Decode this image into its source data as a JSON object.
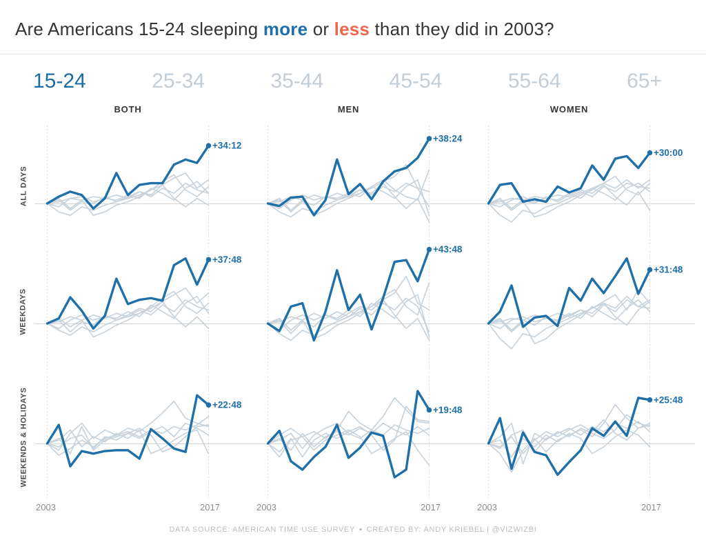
{
  "title": {
    "part1": "Are Americans 15-24 sleeping ",
    "more": "more",
    "part2": " or ",
    "less": "less",
    "part3": " than they did in 2003?"
  },
  "tabs": [
    {
      "label": "15-24",
      "selected": true
    },
    {
      "label": "25-34",
      "selected": false
    },
    {
      "label": "35-44",
      "selected": false
    },
    {
      "label": "45-54",
      "selected": false
    },
    {
      "label": "55-64",
      "selected": false
    },
    {
      "label": "65+",
      "selected": false
    }
  ],
  "columns": [
    "BOTH",
    "MEN",
    "WOMEN"
  ],
  "rows": [
    "ALL DAYS",
    "WEEKDAYS",
    "WEEKENDS & HOLIDAYS"
  ],
  "x_axis": {
    "start": "2003",
    "end": "2017"
  },
  "footer": {
    "source": "DATA SOURCE: AMERICAN TIME USE SURVEY",
    "sep": "•",
    "credit": "CREATED BY: ANDY KRIEBEL | @VIZWIZBI"
  },
  "colors": {
    "accent_blue": "#1f6fa8",
    "accent_orange": "#ee674c",
    "highlight_line": "#1f6fa8",
    "gray_line": "#c9d3db",
    "tab_active": "#1b6ba5",
    "tab_inactive": "#c3cdd5",
    "baseline": "#d4d4d4",
    "grid_dash": "#dcdcdc",
    "axis_text": "#8c8c8c",
    "footer_text": "#bdbdbd"
  },
  "chart_data": {
    "type": "line",
    "title": "Are Americans 15-24 sleeping more or less than they did in 2003?",
    "highlight_group": "15-24",
    "unit": "change in daily sleep vs 2003, minutes (labels shown as +mm:ss)",
    "x": [
      2003,
      2004,
      2005,
      2006,
      2007,
      2008,
      2009,
      2010,
      2011,
      2012,
      2013,
      2014,
      2015,
      2016,
      2017
    ],
    "xlim": [
      2003,
      2017
    ],
    "grid": "dashed verticals at 2003 and 2017, solid zero baseline",
    "legend": "none (end-of-line labels)",
    "panels": [
      {
        "row": "ALL DAYS",
        "col": "BOTH",
        "end_label": "+34:12",
        "highlight": [
          0,
          4,
          7,
          5,
          -3,
          3,
          18,
          5,
          11,
          12,
          12,
          23,
          26,
          24,
          34.2
        ],
        "background": [
          [
            0,
            -5,
            -7,
            -2,
            -4,
            -1,
            1,
            3,
            5,
            8,
            11,
            15,
            18,
            9,
            14
          ],
          [
            0,
            3,
            -3,
            2,
            -7,
            -5,
            -1,
            1,
            4,
            8,
            13,
            17,
            8,
            4,
            10
          ],
          [
            0,
            1,
            3,
            2,
            4,
            3,
            5,
            3,
            7,
            4,
            9,
            6,
            12,
            8,
            6
          ],
          [
            0,
            -2,
            3,
            4,
            1,
            3,
            2,
            5,
            3,
            9,
            6,
            2,
            9,
            13,
            6
          ],
          [
            0,
            2,
            -4,
            1,
            0,
            4,
            1,
            4,
            7,
            5,
            11,
            3,
            -2,
            3,
            -1
          ]
        ]
      },
      {
        "row": "ALL DAYS",
        "col": "MEN",
        "end_label": "+38:24",
        "highlight": [
          0,
          -1.5,
          3.5,
          4,
          -7,
          2,
          26,
          5.5,
          11.5,
          2.5,
          13,
          19,
          21,
          27,
          38.4
        ],
        "background": [
          [
            0,
            -5,
            -8,
            -3,
            -5,
            -1,
            2,
            4,
            6,
            9,
            13,
            16,
            23,
            9,
            7
          ],
          [
            0,
            3,
            -4,
            2,
            -7,
            -4,
            0,
            3,
            6,
            10,
            14,
            8,
            4,
            2,
            20
          ],
          [
            0,
            1,
            4,
            2,
            5,
            3,
            6,
            4,
            8,
            5,
            10,
            7,
            12,
            9,
            -2
          ],
          [
            0,
            -3,
            2,
            5,
            2,
            4,
            3,
            6,
            4,
            10,
            7,
            3,
            10,
            14,
            -7
          ],
          [
            0,
            2,
            -5,
            1,
            -1,
            4,
            2,
            5,
            8,
            6,
            12,
            4,
            -3,
            3,
            -11
          ]
        ]
      },
      {
        "row": "ALL DAYS",
        "col": "WOMEN",
        "end_label": "+30:00",
        "highlight": [
          0,
          11,
          12,
          1,
          2.5,
          1,
          10,
          6.5,
          9,
          22.5,
          14,
          26.5,
          28,
          21,
          30
        ],
        "background": [
          [
            0,
            -7,
            -11,
            -4,
            -6,
            -2,
            0,
            3,
            6,
            9,
            12,
            9,
            14,
            9,
            14
          ],
          [
            0,
            2,
            -4,
            1,
            -8,
            -6,
            -2,
            1,
            5,
            8,
            12,
            16,
            8,
            5,
            12
          ],
          [
            0,
            1,
            3,
            2,
            4,
            3,
            5,
            4,
            7,
            4,
            10,
            7,
            12,
            10,
            9
          ],
          [
            0,
            -2,
            2,
            4,
            1,
            3,
            2,
            6,
            3,
            9,
            6,
            2,
            9,
            12,
            7
          ],
          [
            0,
            3,
            -3,
            2,
            0,
            4,
            1,
            5,
            8,
            6,
            11,
            4,
            -1,
            7,
            -4
          ]
        ]
      },
      {
        "row": "WEEKDAYS",
        "col": "BOTH",
        "end_label": "+37:48",
        "highlight": [
          0,
          3,
          15.5,
          7.5,
          -3,
          4.5,
          26.5,
          11.5,
          14,
          15,
          13.5,
          34.5,
          38.5,
          23,
          37.8
        ],
        "background": [
          [
            0,
            -4,
            -7,
            -2,
            -5,
            -1,
            2,
            4,
            6,
            9,
            13,
            17,
            21,
            12,
            18
          ],
          [
            0,
            3,
            -2,
            2,
            -8,
            -5,
            -1,
            2,
            6,
            10,
            15,
            19,
            10,
            6,
            12
          ],
          [
            0,
            1,
            4,
            2,
            5,
            3,
            6,
            4,
            8,
            5,
            11,
            7,
            14,
            10,
            8
          ],
          [
            0,
            -3,
            2,
            5,
            2,
            4,
            3,
            7,
            4,
            11,
            7,
            3,
            12,
            16,
            6
          ],
          [
            0,
            2,
            -5,
            1,
            -1,
            5,
            2,
            5,
            9,
            7,
            13,
            4,
            -2,
            4,
            -3
          ]
        ]
      },
      {
        "row": "WEEKDAYS",
        "col": "MEN",
        "end_label": "+43:48",
        "highlight": [
          0,
          -4.5,
          10,
          12,
          -10,
          7,
          31.5,
          8,
          17,
          -3.5,
          15,
          36.5,
          37.5,
          25,
          43.8
        ],
        "background": [
          [
            0,
            -6,
            -10,
            -4,
            -7,
            -2,
            1,
            4,
            7,
            10,
            14,
            18,
            28,
            12,
            8
          ],
          [
            0,
            3,
            -4,
            2,
            -9,
            -6,
            -1,
            2,
            6,
            10,
            16,
            20,
            10,
            5,
            24
          ],
          [
            0,
            1,
            4,
            2,
            6,
            3,
            7,
            4,
            9,
            5,
            12,
            8,
            15,
            10,
            -5
          ],
          [
            0,
            -4,
            2,
            5,
            2,
            5,
            3,
            8,
            4,
            12,
            8,
            3,
            13,
            17,
            -8
          ],
          [
            0,
            2,
            -6,
            1,
            -2,
            5,
            2,
            6,
            10,
            8,
            14,
            5,
            -3,
            3,
            -10
          ]
        ]
      },
      {
        "row": "WEEKDAYS",
        "col": "WOMEN",
        "end_label": "+31:48",
        "highlight": [
          0,
          7,
          22.5,
          -2,
          3.5,
          4.5,
          -1.5,
          21,
          13.5,
          26.5,
          18,
          28,
          38.5,
          17.5,
          31.8
        ],
        "background": [
          [
            0,
            -9,
            -15,
            -6,
            -8,
            -3,
            0,
            3,
            6,
            9,
            12,
            9,
            16,
            10,
            14
          ],
          [
            0,
            2,
            -5,
            1,
            -12,
            -9,
            -3,
            1,
            5,
            9,
            13,
            17,
            8,
            20,
            12
          ],
          [
            0,
            1,
            3,
            2,
            5,
            3,
            6,
            4,
            8,
            4,
            11,
            7,
            14,
            10,
            9
          ],
          [
            0,
            -3,
            2,
            4,
            1,
            3,
            2,
            6,
            3,
            10,
            6,
            2,
            9,
            14,
            7
          ],
          [
            0,
            3,
            -4,
            2,
            -1,
            4,
            1,
            5,
            8,
            6,
            12,
            4,
            -1,
            8,
            13
          ]
        ]
      },
      {
        "row": "WEEKENDS & HOLIDAYS",
        "col": "BOTH",
        "end_label": "+22:48",
        "highlight": [
          0,
          11,
          -13.5,
          -4.5,
          -6,
          -4.5,
          -4,
          -4,
          -9,
          8.5,
          3,
          -3,
          -5,
          28.5,
          22.8
        ],
        "background": [
          [
            0,
            -4,
            6,
            12,
            3,
            8,
            5,
            9,
            7,
            12,
            18,
            25,
            15,
            12,
            10
          ],
          [
            0,
            3,
            -6,
            10,
            -4,
            2,
            4,
            6,
            9,
            5,
            -5,
            -2,
            4,
            10,
            11
          ],
          [
            0,
            -7,
            -3,
            2,
            -2,
            3,
            5,
            7,
            4,
            8,
            6,
            10,
            8,
            11,
            16
          ],
          [
            0,
            2,
            8,
            -2,
            4,
            1,
            6,
            3,
            8,
            -6,
            -3,
            2,
            6,
            8,
            -6
          ],
          [
            0,
            -2,
            3,
            5,
            -3,
            4,
            2,
            6,
            3,
            7,
            10,
            4,
            12,
            9,
            5
          ]
        ]
      },
      {
        "row": "WEEKENDS & HOLIDAYS",
        "col": "MEN",
        "end_label": "+19:48",
        "highlight": [
          0,
          7.5,
          -10.5,
          -15.5,
          -8,
          -2,
          11,
          -8.5,
          -2.5,
          6.5,
          4.5,
          -20,
          -15.5,
          31,
          19.8
        ],
        "background": [
          [
            0,
            5,
            9,
            4,
            7,
            3,
            8,
            19,
            12,
            8,
            16,
            27,
            20,
            13,
            12
          ],
          [
            0,
            -5,
            3,
            -8,
            2,
            6,
            3,
            7,
            10,
            5,
            -4,
            2,
            22,
            14,
            13
          ],
          [
            0,
            3,
            -4,
            6,
            -2,
            4,
            7,
            5,
            9,
            6,
            12,
            8,
            5,
            10,
            5
          ],
          [
            0,
            -8,
            2,
            4,
            -4,
            2,
            5,
            8,
            4,
            -6,
            -2,
            3,
            7,
            -4,
            -13
          ],
          [
            0,
            2,
            6,
            -3,
            5,
            9,
            12,
            6,
            3,
            8,
            5,
            11,
            8,
            6,
            9
          ]
        ]
      },
      {
        "row": "WEEKENDS & HOLIDAYS",
        "col": "WOMEN",
        "end_label": "+25:48",
        "highlight": [
          0,
          15,
          -15,
          6.5,
          -5,
          -7,
          -18.5,
          -11,
          -4,
          9,
          4.5,
          13,
          4.5,
          27,
          25.8
        ],
        "background": [
          [
            0,
            -6,
            -17,
            -4,
            3,
            -5,
            2,
            5,
            8,
            4,
            12,
            23,
            15,
            9,
            12
          ],
          [
            0,
            4,
            12,
            -12,
            6,
            2,
            7,
            4,
            9,
            6,
            3,
            8,
            17,
            12,
            10
          ],
          [
            0,
            -3,
            5,
            8,
            -5,
            3,
            6,
            9,
            5,
            10,
            7,
            12,
            9,
            13,
            7
          ],
          [
            0,
            2,
            -8,
            3,
            -2,
            5,
            1,
            6,
            3,
            -6,
            -2,
            4,
            8,
            5,
            -2
          ],
          [
            0,
            -2,
            4,
            -6,
            2,
            7,
            4,
            8,
            11,
            7,
            14,
            6,
            2,
            9,
            11
          ]
        ]
      }
    ]
  }
}
